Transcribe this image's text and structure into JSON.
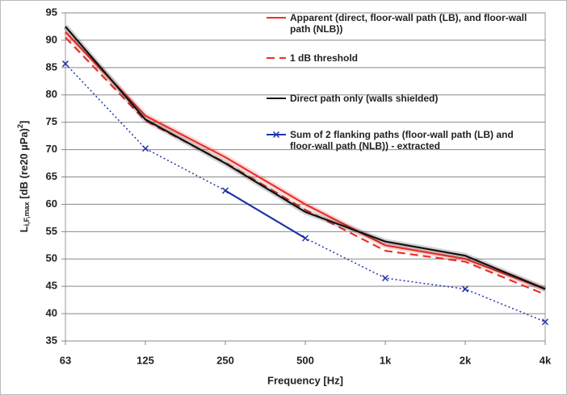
{
  "chart_data": {
    "type": "line",
    "categories": [
      "63",
      "125",
      "250",
      "500",
      "1k",
      "2k",
      "4k"
    ],
    "xlabel": "Frequency [Hz]",
    "ylabel": {
      "main": "L",
      "sub": "i,F,max",
      "rest": " [dB (re20 µPa)",
      "sup": "2",
      "end": "]"
    },
    "ylim": [
      35,
      95
    ],
    "yticks": [
      35,
      40,
      45,
      50,
      55,
      60,
      65,
      70,
      75,
      80,
      85,
      90,
      95
    ],
    "grid": true,
    "legend": "upper right",
    "series": [
      {
        "name": "Apparent (direct, floor-wall path (LB), and floor-wall path (NLB))",
        "color": "#e8302a",
        "dash": "solid",
        "values": [
          91.5,
          76.2,
          68.6,
          60,
          52.5,
          50,
          44.5
        ]
      },
      {
        "name": "1 dB threshold",
        "color": "#e8302a",
        "dash": "dashed",
        "values": [
          90.5,
          75.3,
          67.6,
          59,
          51.5,
          49.5,
          43.5
        ]
      },
      {
        "name": "Direct path only (walls shielded)",
        "color": "#111111",
        "dash": "solid",
        "values": [
          92.5,
          75.5,
          67.5,
          58.6,
          53.2,
          50.6,
          44.5
        ]
      },
      {
        "name": "Sum of 2 flanking paths (floor-wall path (LB) and floor-wall path (NLB))  - extracted",
        "color": "#2233aa",
        "dash": "dotted",
        "marker": "x",
        "solid_segment": [
          2,
          3
        ],
        "values": [
          85.7,
          70.2,
          62.5,
          53.8,
          46.5,
          44.5,
          38.5
        ]
      }
    ]
  }
}
